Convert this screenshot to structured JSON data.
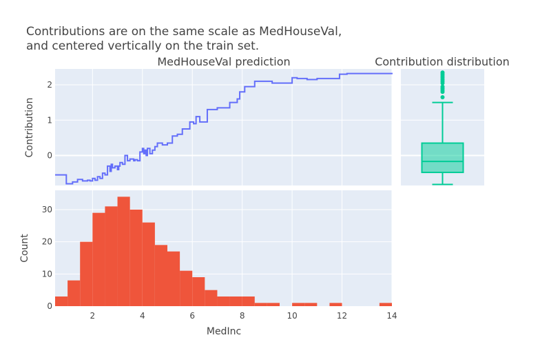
{
  "chart_data": [
    {
      "type": "line",
      "subplot": "top-left",
      "title": "MedHouseVal prediction",
      "ylabel": "Contribution",
      "xlabel": "",
      "xlim": [
        0.5,
        14
      ],
      "ylim": [
        -0.85,
        2.45
      ],
      "x_ticks": [
        2,
        4,
        6,
        8,
        10,
        12,
        14
      ],
      "y_ticks": [
        0,
        1,
        2
      ],
      "y_tick_labels": [
        "0",
        "1",
        "2"
      ],
      "line_shape": "step",
      "color": "#636efa",
      "x": [
        0.5,
        0.8,
        0.95,
        1.2,
        1.4,
        1.6,
        1.8,
        1.9,
        2.0,
        2.1,
        2.2,
        2.3,
        2.4,
        2.5,
        2.6,
        2.7,
        2.75,
        2.8,
        2.9,
        3.0,
        3.05,
        3.1,
        3.2,
        3.3,
        3.4,
        3.5,
        3.6,
        3.65,
        3.7,
        3.8,
        3.9,
        4.0,
        4.05,
        4.1,
        4.15,
        4.2,
        4.3,
        4.4,
        4.5,
        4.6,
        4.8,
        5.0,
        5.2,
        5.4,
        5.6,
        5.9,
        6.05,
        6.15,
        6.3,
        6.4,
        6.6,
        7.0,
        7.2,
        7.5,
        7.8,
        7.9,
        8.1,
        8.5,
        9.2,
        9.5,
        10.0,
        10.2,
        10.6,
        11.0,
        11.9,
        12.2,
        14.0
      ],
      "y": [
        -0.55,
        -0.55,
        -0.8,
        -0.75,
        -0.68,
        -0.72,
        -0.7,
        -0.72,
        -0.65,
        -0.7,
        -0.6,
        -0.65,
        -0.5,
        -0.55,
        -0.3,
        -0.45,
        -0.25,
        -0.35,
        -0.3,
        -0.4,
        -0.3,
        -0.2,
        -0.25,
        0.0,
        -0.15,
        -0.1,
        -0.1,
        -0.15,
        -0.12,
        -0.15,
        0.1,
        0.2,
        0.05,
        0.15,
        0.0,
        0.2,
        0.05,
        0.15,
        0.25,
        0.35,
        0.3,
        0.35,
        0.55,
        0.6,
        0.75,
        0.95,
        0.9,
        1.1,
        0.95,
        0.95,
        1.3,
        1.35,
        1.35,
        1.5,
        1.6,
        1.8,
        1.95,
        2.1,
        2.05,
        2.05,
        2.2,
        2.18,
        2.15,
        2.18,
        2.3,
        2.32,
        2.3
      ]
    },
    {
      "type": "box",
      "subplot": "top-right",
      "title": "Contribution distribution",
      "color": "#00cc96",
      "lower_fence": -0.82,
      "q1": -0.48,
      "median": -0.17,
      "q3": 0.35,
      "upper_fence": 1.5,
      "outliers": [
        1.65,
        1.8,
        1.85,
        1.9,
        1.95,
        2.05,
        2.1,
        2.15,
        2.2,
        2.25,
        2.3,
        2.35
      ]
    },
    {
      "type": "bar",
      "subplot": "bottom-left",
      "title": "",
      "xlabel": "MedInc",
      "ylabel": "Count",
      "xlim": [
        0.5,
        14
      ],
      "ylim": [
        0,
        36
      ],
      "x_ticks": [
        2,
        4,
        6,
        8,
        10,
        12,
        14
      ],
      "y_ticks": [
        0,
        10,
        20,
        30
      ],
      "color": "#ef553b",
      "bin_size": 0.5,
      "bin_starts": [
        0.5,
        1.0,
        1.5,
        2.0,
        2.5,
        3.0,
        3.5,
        4.0,
        4.5,
        5.0,
        5.5,
        6.0,
        6.5,
        7.0,
        7.5,
        8.0,
        8.5,
        9.0,
        9.5,
        10.0,
        10.5,
        11.0,
        11.5,
        12.0,
        12.5,
        13.0,
        13.5
      ],
      "values": [
        3,
        8,
        20,
        29,
        31,
        34,
        30,
        26,
        19,
        17,
        11,
        9,
        5,
        3,
        3,
        3,
        1,
        1,
        0,
        1,
        1,
        0,
        1,
        0,
        0,
        0,
        1
      ]
    }
  ],
  "header": {
    "title_line1": "Contributions are on the same scale as MedHouseVal,",
    "title_line2": "and centered vertically on the train set."
  }
}
